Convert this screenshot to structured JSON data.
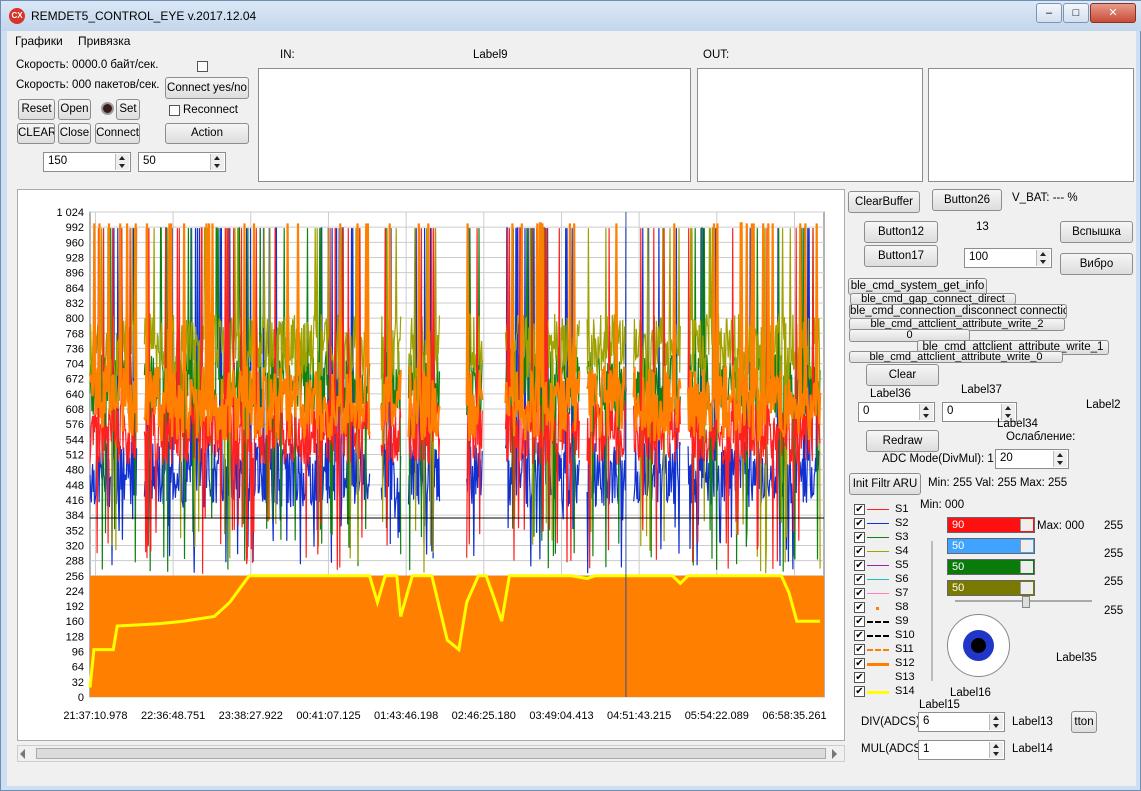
{
  "window": {
    "title": "REMDET5_CONTROL_EYE v.2017.12.04",
    "icon_text": "CX"
  },
  "menu": [
    {
      "label": "Графики"
    },
    {
      "label": "Привязка"
    }
  ],
  "status": {
    "speed_bytes": "Скорость: 0000.0 байт/сек.",
    "speed_packets": "Скорость: 000 пакетов/сек."
  },
  "buttons": {
    "reset": "Reset",
    "open": "Open",
    "set": "Set",
    "clear_upper": "CLEAR",
    "close": "Close",
    "connect": "Connect",
    "connect_yes_no": "Connect yes/no",
    "action": "Action",
    "reconnect": "Reconnect",
    "clear_buffer": "ClearBuffer",
    "button26": "Button26",
    "button12": "Button12",
    "button17": "Button17",
    "flash": "Вспышка",
    "vibro": "Вибро",
    "ble1": "ble_cmd_system_get_info",
    "ble2": "ble_cmd_gap_connect_direct",
    "ble3": "ble_cmd_connection_disconnect connection",
    "ble4": "ble_cmd_attclient_attribute_write_2",
    "ble5": "0",
    "ble6": "ble_cmd_attclient_attribute_write_1",
    "ble7": "ble_cmd_attclient_attribute_write_0",
    "clear": "Clear",
    "redraw": "Redraw",
    "init_filtr": "Init Filtr ARU",
    "tton": "tton"
  },
  "spinners": {
    "left_a": "150",
    "left_b": "50",
    "s100": "100",
    "label36_val": "0",
    "label37_val": "0",
    "attenuation": "20",
    "div": "6",
    "mul": "1"
  },
  "panels": {
    "in_label": "IN:",
    "label9": "Label9",
    "out_label": "OUT:"
  },
  "labels": {
    "vbat": "V_BAT:  ---  %",
    "n13": "13",
    "label36": "Label36",
    "label37": "Label37",
    "label2": "Label2",
    "label34": "Label34",
    "attenuation": "Ослабление:",
    "adc_mode": "ADC Mode(DivMul):  1",
    "min_val_max": "Min:   255  Val:   255  Max:   255",
    "min000": "Min:  000",
    "max000": "Max:  000",
    "r255": "255",
    "label35": "Label35",
    "label16": "Label16",
    "label15": "Label15",
    "div": "DIV(ADCS)",
    "mul": "MUL(ADCS)",
    "label13": "Label13",
    "label14": "Label14"
  },
  "colorbars": [
    {
      "value": "90",
      "color": "#ff1010"
    },
    {
      "value": "50",
      "color": "#3fa3ff"
    },
    {
      "value": "50",
      "color": "#0a7a0a"
    },
    {
      "value": "50",
      "color": "#7a7a00"
    }
  ],
  "legend": [
    {
      "name": "S1",
      "color": "#ff2020",
      "style": "line"
    },
    {
      "name": "S2",
      "color": "#1030d0",
      "style": "line"
    },
    {
      "name": "S3",
      "color": "#108010",
      "style": "line"
    },
    {
      "name": "S4",
      "color": "#a0a000",
      "style": "line"
    },
    {
      "name": "S5",
      "color": "#a020a0",
      "style": "line"
    },
    {
      "name": "S6",
      "color": "#20c0c0",
      "style": "line"
    },
    {
      "name": "S7",
      "color": "#ff80c0",
      "style": "line"
    },
    {
      "name": "S8",
      "color": "#ff8000",
      "style": "dot"
    },
    {
      "name": "S9",
      "color": "#000000",
      "style": "dash"
    },
    {
      "name": "S10",
      "color": "#000000",
      "style": "dash"
    },
    {
      "name": "S11",
      "color": "#ff8000",
      "style": "dashdot"
    },
    {
      "name": "S12",
      "color": "#ff8000",
      "style": "thick"
    },
    {
      "name": "S13",
      "color": "#000000",
      "style": "none"
    },
    {
      "name": "S14",
      "color": "#ffff00",
      "style": "thick"
    }
  ],
  "chart_data": {
    "type": "line",
    "yticks": [
      "0",
      "32",
      "64",
      "96",
      "128",
      "160",
      "192",
      "224",
      "256",
      "288",
      "320",
      "352",
      "384",
      "416",
      "448",
      "480",
      "512",
      "544",
      "576",
      "608",
      "640",
      "672",
      "704",
      "736",
      "768",
      "800",
      "832",
      "864",
      "896",
      "928",
      "960",
      "992",
      "1 024"
    ],
    "ylim": [
      0,
      1024
    ],
    "xticks": [
      "21:37:10.978",
      "22:36:48.751",
      "23:38:27.922",
      "00:41:07.125",
      "01:43:46.198",
      "02:46:25.180",
      "03:49:04.413",
      "04:51:43.215",
      "05:54:22.089",
      "06:58:35.261"
    ],
    "grid": true,
    "cursor": {
      "x_tick_index": 6.9,
      "y": 378
    },
    "series": [
      {
        "name": "S12",
        "color": "#ff8000",
        "fill_level": 256
      },
      {
        "name": "S14",
        "color": "#ffff00",
        "values": [
          [
            0,
            20
          ],
          [
            0.05,
            100
          ],
          [
            0.3,
            100
          ],
          [
            0.35,
            150
          ],
          [
            0.9,
            155
          ],
          [
            1.2,
            160
          ],
          [
            1.6,
            170
          ],
          [
            1.8,
            200
          ],
          [
            2.05,
            256
          ],
          [
            3.6,
            256
          ],
          [
            3.7,
            200
          ],
          [
            3.8,
            256
          ],
          [
            3.95,
            256
          ],
          [
            4.0,
            170
          ],
          [
            4.15,
            256
          ],
          [
            4.4,
            256
          ],
          [
            4.6,
            120
          ],
          [
            4.75,
            100
          ],
          [
            4.85,
            200
          ],
          [
            5.0,
            256
          ],
          [
            5.1,
            256
          ],
          [
            5.2,
            210
          ],
          [
            5.3,
            160
          ],
          [
            5.4,
            256
          ],
          [
            6.2,
            256
          ],
          [
            6.4,
            250
          ],
          [
            6.5,
            256
          ],
          [
            7.5,
            256
          ],
          [
            7.6,
            240
          ],
          [
            7.7,
            256
          ],
          [
            8.9,
            256
          ],
          [
            9.0,
            220
          ],
          [
            9.1,
            160
          ],
          [
            9.4,
            160
          ]
        ]
      },
      {
        "name": "S2",
        "color": "#1030d0",
        "base": 470
      },
      {
        "name": "S3",
        "color": "#108010",
        "base": 660
      },
      {
        "name": "S4",
        "color": "#a0a000",
        "base": 740
      },
      {
        "name": "S1",
        "color": "#ff2020",
        "base": 560
      }
    ]
  }
}
